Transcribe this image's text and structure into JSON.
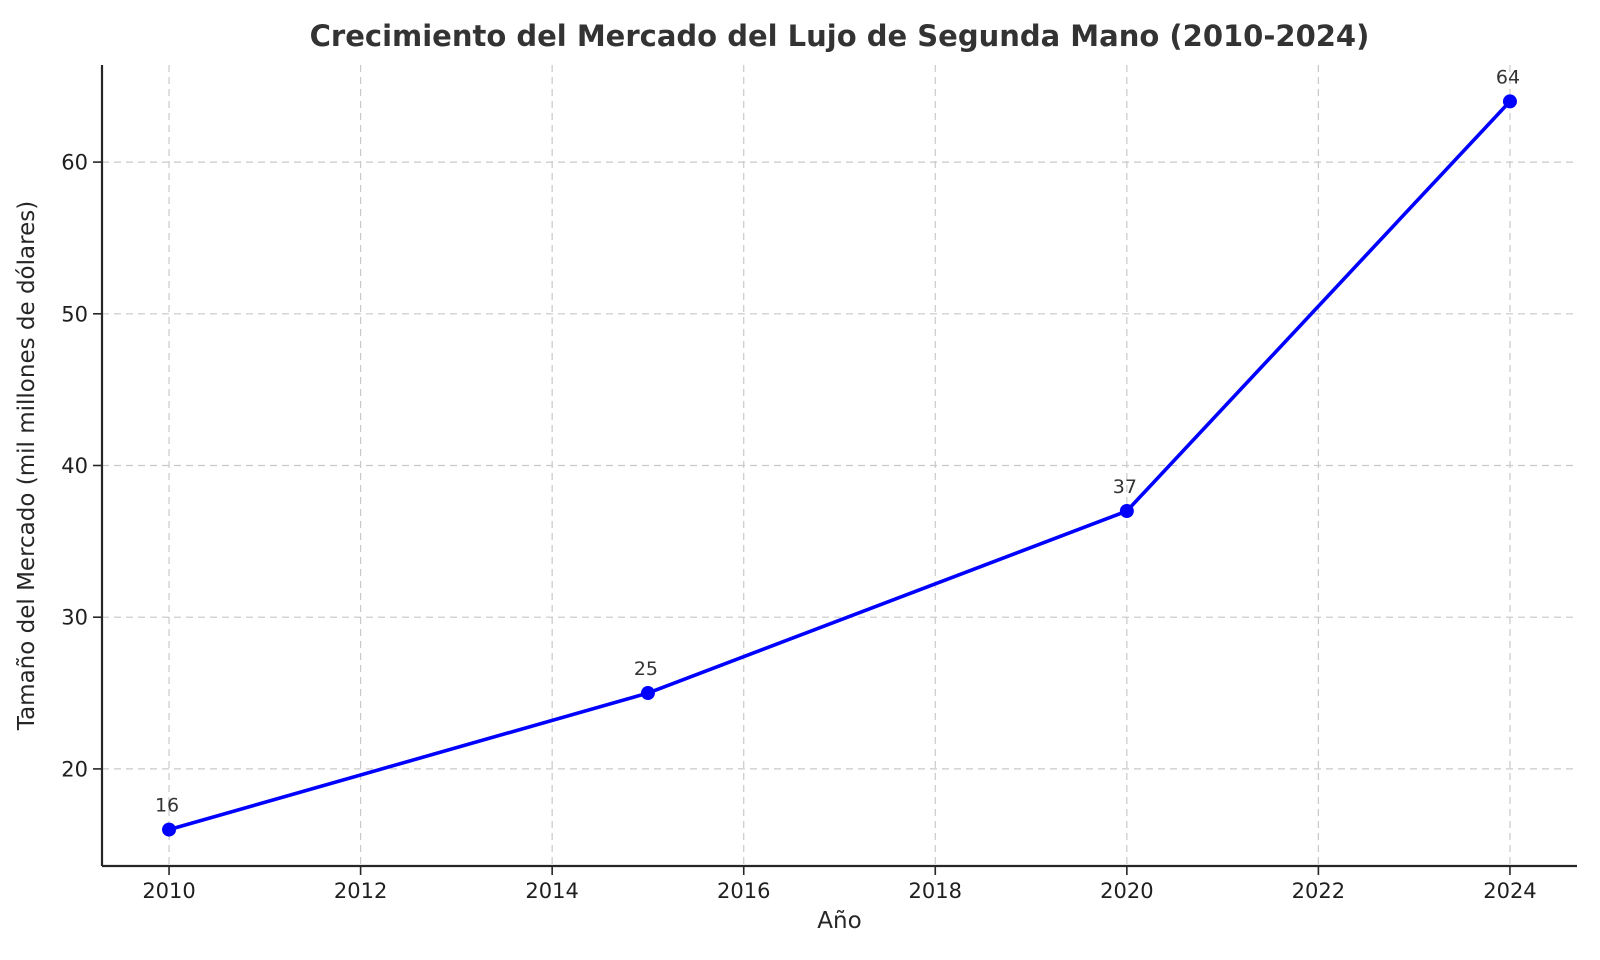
{
  "chart_data": {
    "type": "line",
    "title": "Crecimiento del Mercado del Lujo de Segunda Mano (2010-2024)",
    "xlabel": "Año",
    "ylabel": "Tamaño del Mercado (mil millones de dólares)",
    "series": [
      {
        "name": "Tamaño del Mercado",
        "x": [
          2010,
          2015,
          2020,
          2024
        ],
        "values": [
          16,
          25,
          37,
          64
        ],
        "point_labels": [
          "16",
          "25",
          "37",
          "64"
        ]
      }
    ],
    "xticks": [
      2010,
      2012,
      2014,
      2016,
      2018,
      2020,
      2022,
      2024
    ],
    "yticks": [
      20,
      30,
      40,
      50,
      60
    ],
    "xlim": [
      2009.3,
      2024.7
    ],
    "ylim": [
      13.6,
      66.4
    ],
    "legend": "none",
    "grid": "dashed",
    "colors": {
      "line": "#0000ff",
      "marker": "#0000ff",
      "grid": "#c9c9c9",
      "spine": "#262626",
      "tick": "#262626",
      "title_text": "#333333",
      "background": "#ffffff"
    }
  }
}
